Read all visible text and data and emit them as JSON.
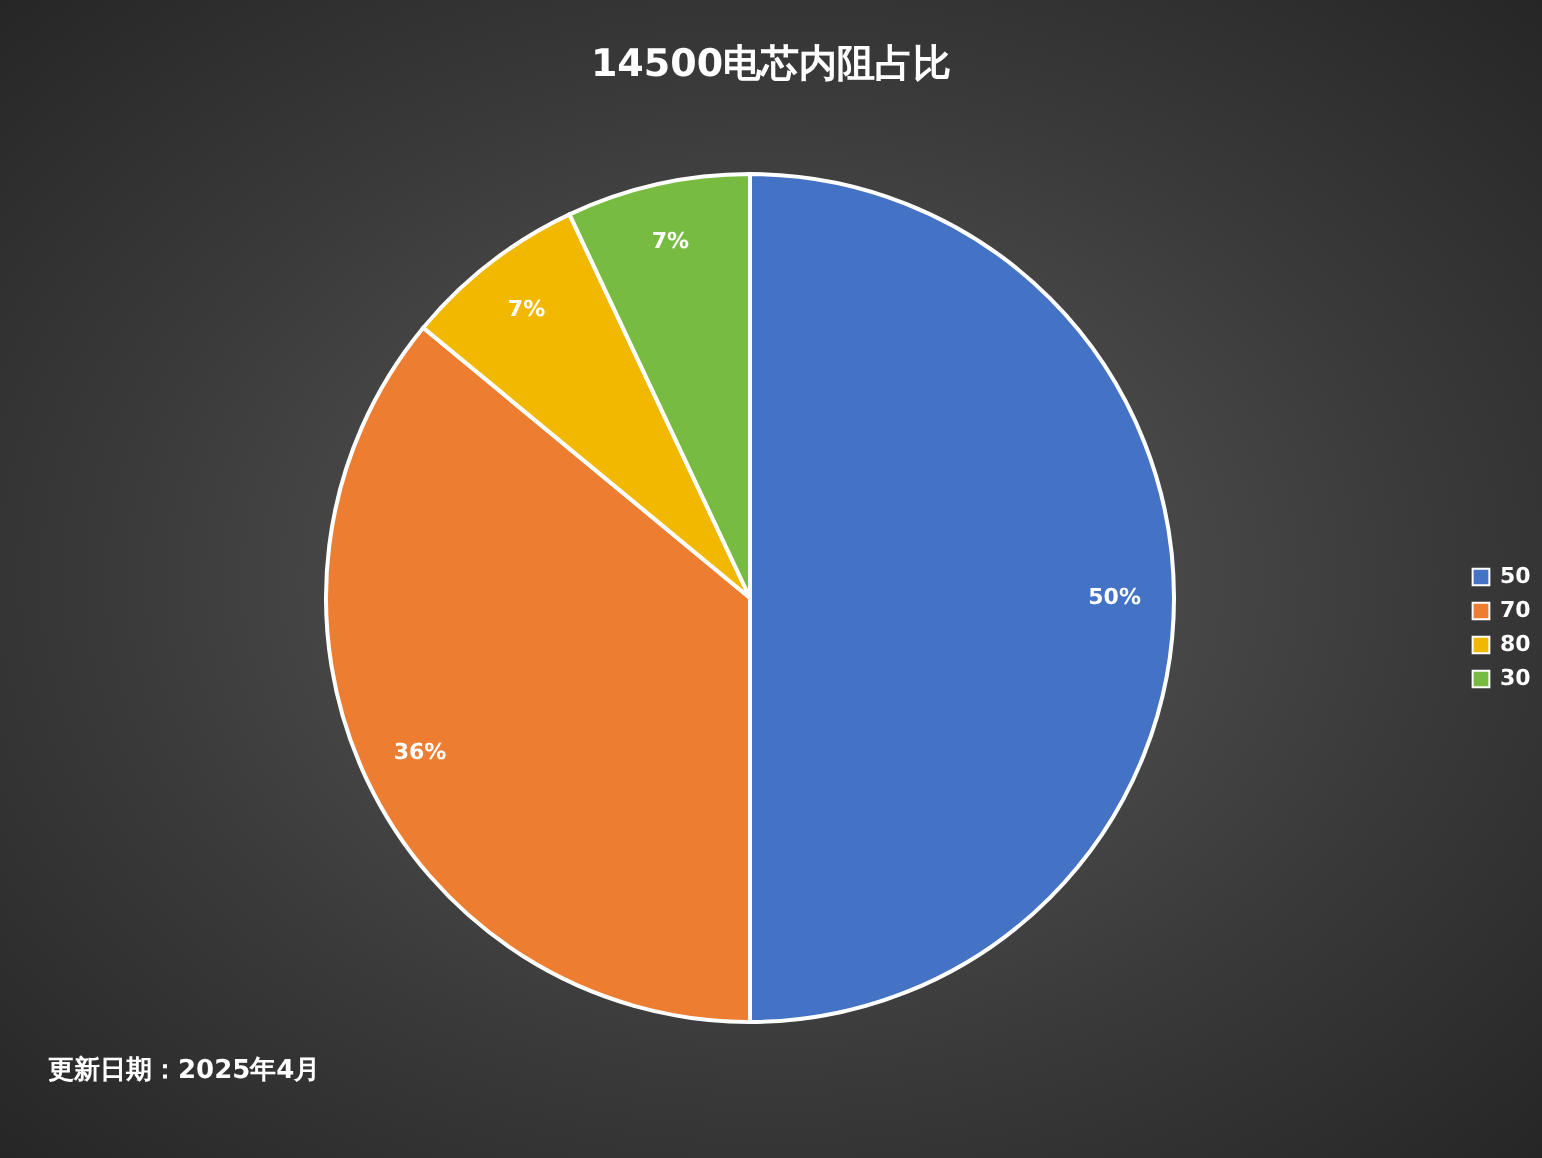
{
  "chart_data": {
    "type": "pie",
    "title": "14500电芯内阻占比",
    "categories": [
      "50",
      "70",
      "80",
      "30"
    ],
    "values": [
      50,
      36,
      7,
      7
    ],
    "colors": [
      "#4472c4",
      "#ed7d31",
      "#f2b800",
      "#77bb41"
    ],
    "value_labels": [
      "50%",
      "36%",
      "7%",
      "7%"
    ],
    "legend": "right",
    "annotations": [
      "更新日期：2025年4月"
    ]
  }
}
